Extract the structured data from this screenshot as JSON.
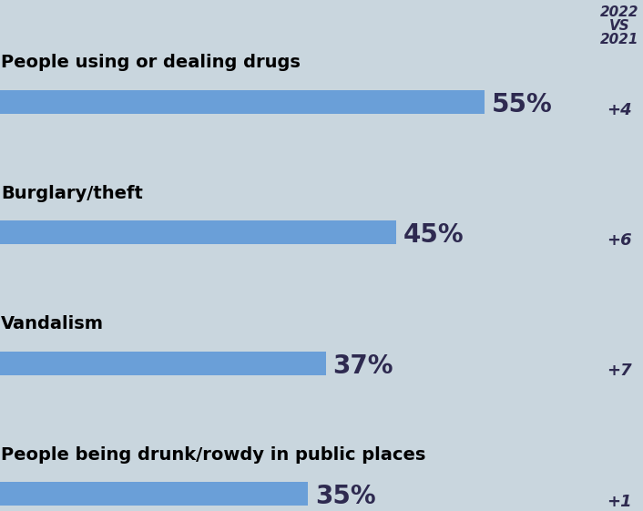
{
  "chart_data": {
    "type": "bar",
    "orientation": "horizontal",
    "categories": [
      "People using or dealing drugs",
      "Burglary/theft",
      "Vandalism",
      "People being drunk/rowdy in public places"
    ],
    "values": [
      55,
      45,
      37,
      35
    ],
    "value_labels": [
      "55%",
      "45%",
      "37%",
      "35%"
    ],
    "data_labels": true,
    "tick_labels": false,
    "color": "#6a9fd8",
    "change": {
      "header": "2022\nVS\n2021",
      "values": [
        4,
        6,
        7,
        1
      ],
      "value_labels": [
        "+4",
        "+6",
        "+7",
        "+1"
      ]
    }
  }
}
